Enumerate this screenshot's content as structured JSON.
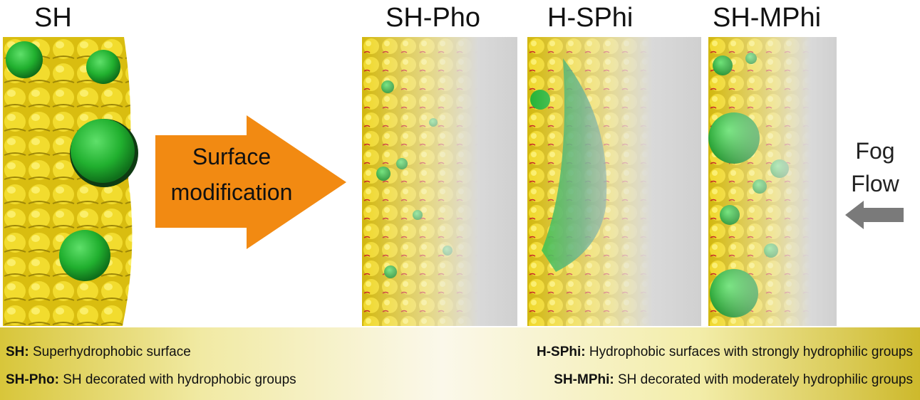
{
  "panels": {
    "sh": {
      "title": "SH"
    },
    "sh_pho": {
      "title": "SH-Pho"
    },
    "h_sphi": {
      "title": "H-SPhi"
    },
    "sh_mphi": {
      "title": "SH-MPhi"
    }
  },
  "arrow": {
    "line1": "Surface",
    "line2": "modification"
  },
  "fog": {
    "line1": "Fog",
    "line2": "Flow"
  },
  "legend": {
    "sh": {
      "term": "SH:",
      "desc": " Superhydrophobic surface"
    },
    "sh_pho": {
      "term": "SH-Pho:",
      "desc": " SH decorated with hydrophobic groups"
    },
    "h_sphi": {
      "term": "H-SPhi:",
      "desc": " Hydrophobic surfaces with strongly hydrophilic groups"
    },
    "sh_mphi": {
      "term": "SH-MPhi:",
      "desc": " SH decorated with moderately hydrophilic groups"
    }
  },
  "colors": {
    "surface": "#e6cf1a",
    "droplet": "#22b232",
    "arrow": "#f28a12",
    "fog_arrow": "#7a7a7a"
  }
}
